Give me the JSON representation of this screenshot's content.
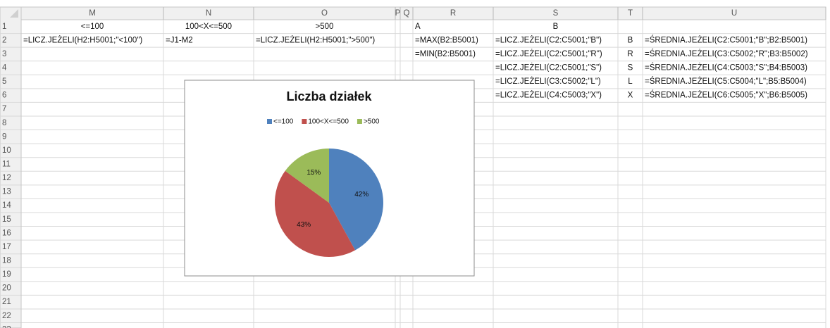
{
  "sheet": {
    "columns": [
      "M",
      "N",
      "O",
      "P",
      "Q",
      "R",
      "S",
      "T",
      "U"
    ],
    "rows": [
      "1",
      "2",
      "3",
      "4",
      "5",
      "6",
      "7",
      "8",
      "9",
      "10",
      "11",
      "12",
      "13",
      "14",
      "15",
      "16",
      "17",
      "18",
      "19",
      "20",
      "21",
      "22",
      "23"
    ],
    "cells": [
      [
        "<=100",
        "100<X<=500",
        ">500",
        null,
        null,
        "A",
        "B",
        null,
        null
      ],
      [
        "=LICZ.JEŻELI(H2:H5001;\"<100\")",
        "=J1-M2",
        "=LICZ.JEŻELI(H2:H5001;\">500\")",
        null,
        null,
        "=MAX(B2:B5001)",
        "=LICZ.JEŻELI(C2:C5001;\"B\")",
        "B",
        "=ŚREDNIA.JEŻELI(C2:C5001;\"B\";B2:B5001)"
      ],
      [
        null,
        null,
        null,
        null,
        null,
        "=MIN(B2:B5001)",
        "=LICZ.JEŻELI(C2:C5001;\"R\")",
        "R",
        "=ŚREDNIA.JEŻELI(C3:C5002;\"R\";B3:B5002)"
      ],
      [
        null,
        null,
        null,
        null,
        null,
        null,
        "=LICZ.JEŻELI(C2:C5001;\"S\")",
        "S",
        "=ŚREDNIA.JEŻELI(C4:C5003;\"S\";B4:B5003)"
      ],
      [
        null,
        null,
        null,
        null,
        null,
        null,
        "=LICZ.JEŻELI(C3:C5002;\"L\")",
        "L",
        "=ŚREDNIA.JEŻELI(C5:C5004;\"L\";B5:B5004)"
      ],
      [
        null,
        null,
        null,
        null,
        null,
        null,
        "=LICZ.JEŻELI(C4:C5003;\"X\")",
        "X",
        "=ŚREDNIA.JEŻELI(C6:C5005;\"X\";B6:B5005)"
      ]
    ]
  },
  "chart_data": {
    "type": "pie",
    "title": "Liczba działek",
    "categories": [
      "<=100",
      "100<X<=500",
      ">500"
    ],
    "values": [
      42,
      43,
      15
    ],
    "value_labels": [
      "42%",
      "43%",
      "15%"
    ],
    "colors": [
      "#4f81bd",
      "#c0504d",
      "#9bbb59"
    ],
    "legend": "top"
  }
}
